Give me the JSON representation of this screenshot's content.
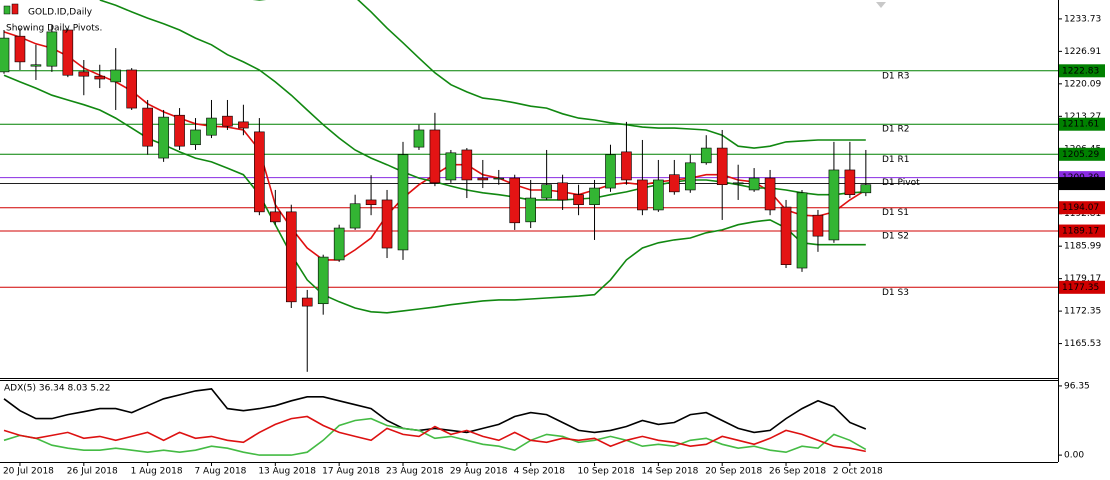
{
  "chart_data": [
    {
      "type": "candlestick",
      "title": "GOLD.ID,Daily",
      "subtitle": "Showing Daily Pivots.",
      "categories": [
        null,
        "20 Jul 2018",
        null,
        null,
        null,
        "26 Jul 2018",
        null,
        null,
        null,
        "1 Aug 2018",
        null,
        null,
        null,
        "7 Aug 2018",
        null,
        null,
        null,
        "13 Aug 2018",
        null,
        null,
        null,
        "17 Aug 2018",
        null,
        null,
        null,
        "23 Aug 2018",
        null,
        null,
        null,
        "29 Aug 2018",
        null,
        null,
        null,
        "4 Sep 2018",
        null,
        null,
        null,
        "10 Sep 2018",
        null,
        null,
        null,
        "14 Sep 2018",
        null,
        null,
        null,
        "20 Sep 2018",
        null,
        null,
        null,
        "26 Sep 2018",
        null,
        null,
        null,
        "2 Oct 2018",
        null
      ],
      "open": [
        1222.6,
        1230.1,
        1223.8,
        1223.8,
        1231.4,
        1222.6,
        1221.7,
        1220.5,
        1223.0,
        1215.0,
        1204.5,
        1213.5,
        1207.3,
        1209.3,
        1213.3,
        1212.1,
        1210.0,
        1193.2,
        1193.2,
        1175.1,
        1173.9,
        1183.1,
        1189.8,
        1195.7,
        1195.7,
        1185.2,
        1206.8,
        1210.4,
        1199.9,
        1206.2,
        1200.3,
        1200.3,
        1200.3,
        1191.1,
        1196.1,
        1199.3,
        1196.8,
        1194.7,
        1198.2,
        1205.8,
        1199.9,
        1193.6,
        1201.0,
        1197.8,
        1203.5,
        1206.6,
        1199.3,
        1197.8,
        1200.3,
        1194.2,
        1181.4,
        1192.5,
        1187.3,
        1202.0,
        1197.2
      ],
      "high": [
        1231.4,
        1231.8,
        1228.3,
        1232.5,
        1231.8,
        1225.1,
        1224.1,
        1227.6,
        1223.4,
        1216.7,
        1214.6,
        1215.0,
        1212.9,
        1216.7,
        1216.7,
        1215.7,
        1212.9,
        1197.8,
        1194.7,
        1176.8,
        1184.2,
        1190.5,
        1196.8,
        1200.9,
        1197.8,
        1207.9,
        1211.5,
        1214.0,
        1206.2,
        1206.6,
        1204.1,
        1202.0,
        1201.0,
        1199.9,
        1206.2,
        1201.0,
        1198.9,
        1199.9,
        1207.3,
        1212.1,
        1208.3,
        1204.1,
        1204.1,
        1205.2,
        1209.3,
        1210.4,
        1203.1,
        1202.4,
        1202.0,
        1195.7,
        1197.8,
        1193.6,
        1207.9,
        1207.9,
        1206.2
      ],
      "low": [
        1222.2,
        1223.0,
        1220.9,
        1222.6,
        1221.5,
        1217.7,
        1219.2,
        1214.6,
        1214.6,
        1205.2,
        1203.7,
        1206.2,
        1206.2,
        1208.7,
        1210.4,
        1209.3,
        1192.5,
        1190.5,
        1173.0,
        1159.6,
        1171.6,
        1182.7,
        1189.4,
        1192.5,
        1183.5,
        1183.1,
        1206.2,
        1198.6,
        1199.3,
        1196.1,
        1198.2,
        1198.9,
        1189.4,
        1189.8,
        1195.7,
        1193.6,
        1192.5,
        1187.3,
        1197.4,
        1198.9,
        1192.5,
        1193.2,
        1196.8,
        1197.2,
        1203.1,
        1191.5,
        1195.7,
        1197.4,
        1192.5,
        1181.4,
        1180.6,
        1184.8,
        1186.7,
        1196.1,
        1196.5
      ],
      "close": [
        1229.7,
        1224.7,
        1224.1,
        1231.0,
        1221.9,
        1221.7,
        1221.1,
        1223.0,
        1215.0,
        1207.0,
        1213.1,
        1207.0,
        1210.4,
        1212.9,
        1211.2,
        1210.8,
        1193.2,
        1191.1,
        1174.3,
        1173.4,
        1183.7,
        1189.8,
        1194.9,
        1194.7,
        1185.6,
        1205.2,
        1210.4,
        1199.3,
        1205.6,
        1199.9,
        1199.9,
        1200.3,
        1190.9,
        1196.1,
        1198.9,
        1195.7,
        1194.7,
        1198.2,
        1205.2,
        1199.9,
        1193.6,
        1199.9,
        1197.4,
        1203.5,
        1206.6,
        1198.9,
        1199.3,
        1200.3,
        1193.6,
        1182.1,
        1197.2,
        1188.1,
        1202.0,
        1196.8,
        1198.9
      ],
      "up_color": "#33b533",
      "down_color": "#e31414",
      "series": [
        {
          "color": "#e01010",
          "values": [
            1231.0,
            1229.9,
            1228.5,
            1227.6,
            1225.9,
            1223.4,
            1221.9,
            1220.5,
            1218.6,
            1215.9,
            1214.2,
            1212.9,
            1211.7,
            1211.2,
            1211.0,
            1210.4,
            1206.2,
            1194.7,
            1189.8,
            1185.6,
            1183.1,
            1183.1,
            1185.2,
            1187.7,
            1192.5,
            1196.1,
            1198.9,
            1201.0,
            1203.1,
            1203.1,
            1201.0,
            1200.3,
            1198.9,
            1197.8,
            1197.8,
            1197.4,
            1196.8,
            1197.8,
            1198.9,
            1199.3,
            1198.9,
            1199.5,
            1199.9,
            1200.3,
            1201.0,
            1201.0,
            1199.9,
            1199.5,
            1197.4,
            1193.6,
            1192.5,
            1192.3,
            1193.2,
            1195.7,
            1197.8
          ]
        },
        {
          "color": "#118811",
          "values": [
            null,
            null,
            null,
            null,
            null,
            null,
            null,
            null,
            null,
            null,
            null,
            null,
            null,
            null,
            null,
            1238.1,
            1237.7,
            1238.1,
            1239.8,
            1240.6,
            1240.9,
            1239.8,
            1238.3,
            1235.2,
            1231.8,
            1228.7,
            1225.5,
            1222.4,
            1219.9,
            1218.4,
            1217.1,
            1216.7,
            1216.1,
            1215.4,
            1215.0,
            1213.8,
            1212.9,
            1212.5,
            1211.9,
            1211.5,
            1211.0,
            1210.8,
            1210.8,
            1210.6,
            1210.4,
            1209.3,
            1207.0,
            1206.6,
            1207.0,
            1207.9,
            1208.1,
            1208.3,
            1208.3,
            1208.3,
            1208.3
          ]
        },
        {
          "color": "#118811",
          "values": [
            null,
            null,
            null,
            null,
            null,
            null,
            1237.7,
            1236.6,
            1235.2,
            1233.9,
            1232.7,
            1231.4,
            1229.7,
            1228.3,
            1226.2,
            1224.7,
            1223.0,
            1220.5,
            1217.7,
            1214.6,
            1211.5,
            1208.7,
            1206.2,
            1204.5,
            1203.1,
            1201.6,
            1200.3,
            1199.5,
            1198.6,
            1197.8,
            1197.2,
            1196.8,
            1196.3,
            1195.7,
            1195.7,
            1195.7,
            1195.9,
            1196.1,
            1196.8,
            1197.4,
            1198.2,
            1198.9,
            1199.5,
            1199.9,
            1199.9,
            1199.5,
            1198.9,
            1198.2,
            1198.2,
            1197.8,
            1197.2,
            1196.8,
            1196.8,
            1197.2,
            1197.4
          ]
        },
        {
          "color": "#118811",
          "values": [
            1221.9,
            1220.5,
            1219.2,
            1217.7,
            1216.7,
            1215.7,
            1214.6,
            1212.9,
            1210.8,
            1208.7,
            1207.3,
            1205.8,
            1204.5,
            1203.7,
            1202.4,
            1201.0,
            1196.8,
            1190.5,
            1184.2,
            1178.9,
            1175.8,
            1174.3,
            1173.0,
            1172.2,
            1172.0,
            1172.4,
            1172.8,
            1173.2,
            1173.7,
            1174.1,
            1174.5,
            1174.7,
            1174.7,
            1174.9,
            1175.1,
            1175.3,
            1175.5,
            1175.8,
            1178.9,
            1183.1,
            1185.6,
            1186.7,
            1187.3,
            1187.7,
            1188.8,
            1189.4,
            1190.5,
            1191.1,
            1191.5,
            1189.8,
            1186.7,
            1186.3,
            1186.3,
            1186.3,
            1186.3
          ]
        }
      ],
      "ylim": [
        1158.3,
        1237.7
      ],
      "yticks": [
        1233.73,
        1226.91,
        1220.09,
        1213.27,
        1206.45,
        1199.63,
        1192.81,
        1185.99,
        1179.17,
        1172.35,
        1165.53
      ],
      "levels": [
        {
          "label": "D1 R3",
          "value": 1222.83,
          "color": "#008000"
        },
        {
          "label": "D1 R2",
          "value": 1211.61,
          "color": "#008000"
        },
        {
          "label": "D1 R1",
          "value": 1205.29,
          "color": "#008000"
        },
        {
          "label": "D1 Pivot",
          "value": 1200.39,
          "color": "#8a2be2"
        },
        {
          "label": "D1 S1",
          "value": 1194.07,
          "color": "#d00000"
        },
        {
          "label": "D1 S2",
          "value": 1189.17,
          "color": "#d00000"
        },
        {
          "label": "D1 S3",
          "value": 1177.35,
          "color": "#d00000"
        }
      ],
      "current_price": 1199.14,
      "current_color": "#000000"
    },
    {
      "type": "line",
      "title": "ADX(5) 36.34 8.03 5.22",
      "series": [
        {
          "color": "#000000",
          "values": [
            78.4,
            61.9,
            50.9,
            50.9,
            56.4,
            60.5,
            64.7,
            64.7,
            59.2,
            68.8,
            78.4,
            83.9,
            89.4,
            92.2,
            64.7,
            61.9,
            64.7,
            68.8,
            75.7,
            81.2,
            81.2,
            75.7,
            70.2,
            64.7,
            48.2,
            37.2,
            34.4,
            37.2,
            34.4,
            31.6,
            37.2,
            42.7,
            53.7,
            59.2,
            56.4,
            45.4,
            34.4,
            31.6,
            34.4,
            39.9,
            48.2,
            42.7,
            45.4,
            56.4,
            59.2,
            48.2,
            37.2,
            31.6,
            34.4,
            50.9,
            64.7,
            75.7,
            67.4,
            45.4,
            36.3
          ]
        },
        {
          "color": "#44bb44",
          "values": [
            20.6,
            27.5,
            23.4,
            13.8,
            9.6,
            6.9,
            6.9,
            9.6,
            6.9,
            4.1,
            6.9,
            4.1,
            6.9,
            12.4,
            9.6,
            4.1,
            0,
            0,
            0,
            4.1,
            20.6,
            41.3,
            48.2,
            50.9,
            41.3,
            37.2,
            34.4,
            23.4,
            26.1,
            20.6,
            15.1,
            12.4,
            6.9,
            20.6,
            28.9,
            26.1,
            17.9,
            20.6,
            26.1,
            20.6,
            12.4,
            15.1,
            12.4,
            20.6,
            23.4,
            15.1,
            9.6,
            12.4,
            6.9,
            4.1,
            12.4,
            9.6,
            28.9,
            20.6,
            8.0
          ]
        },
        {
          "color": "#dd1111",
          "values": [
            34.4,
            27.5,
            23.4,
            27.5,
            31.6,
            23.4,
            26.1,
            20.6,
            26.1,
            31.6,
            20.6,
            31.6,
            23.4,
            26.1,
            20.6,
            17.9,
            31.6,
            42.7,
            50.9,
            53.7,
            41.3,
            31.6,
            26.1,
            20.6,
            37.2,
            28.9,
            26.1,
            39.9,
            28.9,
            34.4,
            26.1,
            20.6,
            31.6,
            20.6,
            17.9,
            23.4,
            20.6,
            23.4,
            12.4,
            20.6,
            26.1,
            20.6,
            17.9,
            12.4,
            15.1,
            26.1,
            20.6,
            15.1,
            23.4,
            34.4,
            28.9,
            20.6,
            12.4,
            9.6,
            5.2
          ]
        }
      ],
      "ylim": [
        -9.6,
        104.6
      ],
      "yticks": [
        96.35,
        {
          "value": 0,
          "label": "0.00"
        }
      ]
    }
  ]
}
